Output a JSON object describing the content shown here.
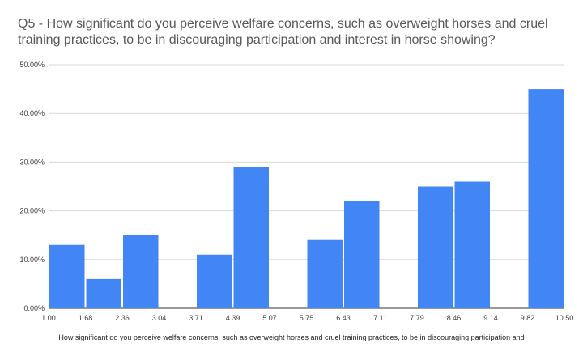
{
  "chart_data": {
    "type": "bar",
    "title": "Q5 - How significant do you perceive welfare concerns, such as overweight horses and cruel training practices, to be in discouraging participation and interest in horse showing?",
    "xlabel": "How significant do you perceive welfare concerns, such as overweight horses and cruel training practices, to be in discouraging participation and",
    "ylabel": "",
    "x_ticks": [
      "1.00",
      "1.68",
      "2.36",
      "3.04",
      "3.71",
      "4.39",
      "5.07",
      "5.75",
      "6.43",
      "7.11",
      "7.79",
      "8.46",
      "9.14",
      "9.82",
      "10.50"
    ],
    "y_ticks": [
      "0.00%",
      "10.00%",
      "20.00%",
      "30.00%",
      "40.00%",
      "50.00%"
    ],
    "ylim": [
      0,
      50
    ],
    "grid": true,
    "bar_color": "#4285f4",
    "values": [
      13,
      6,
      15,
      0,
      11,
      29,
      0,
      14,
      22,
      0,
      25,
      26,
      0,
      45
    ]
  }
}
